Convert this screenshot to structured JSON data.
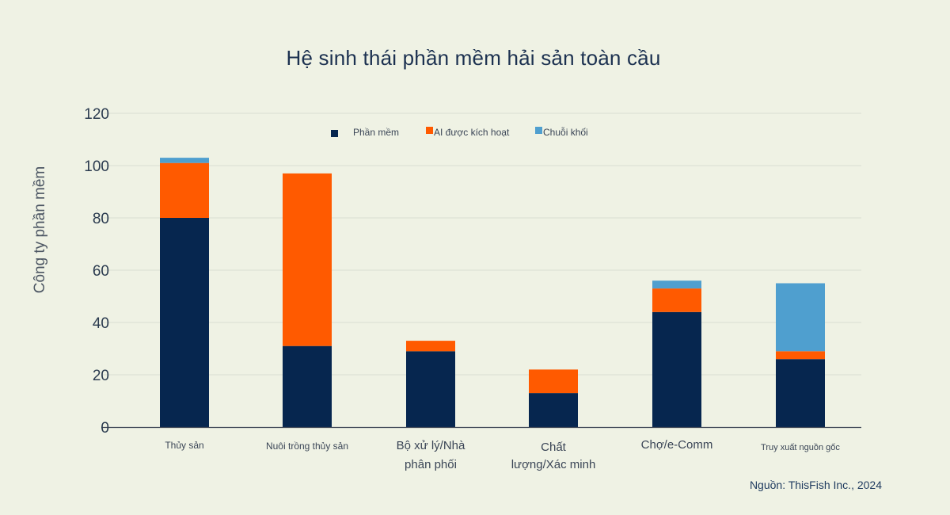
{
  "chart_data": {
    "type": "bar",
    "stacked": true,
    "title": "Hệ sinh thái phần mềm hải sản toàn cầu",
    "ylabel": "Công ty phần mềm",
    "xlabel": "",
    "ylim": [
      0,
      120
    ],
    "yticks": [
      0,
      20,
      40,
      60,
      80,
      100,
      120
    ],
    "grid": true,
    "legend_position": "top",
    "categories": [
      "Thủy sản",
      "Nuôi trồng thủy sản",
      "Bộ xử lý/Nhà phân phối",
      "Chất lượng/Xác minh",
      "Chợ/e-Comm",
      "Truy xuất nguồn gốc"
    ],
    "category_lines": [
      [
        "Thủy sản"
      ],
      [
        "Nuôi trồng thủy sản"
      ],
      [
        "Bộ xử lý/Nhà",
        "phân phối"
      ],
      [
        "Chất",
        "lượng/Xác minh"
      ],
      [
        "Chợ/e-Comm"
      ],
      [
        "Truy xuất nguồn gốc"
      ]
    ],
    "series": [
      {
        "name": "Phần mềm",
        "color": "#06264f",
        "values": [
          80,
          31,
          29,
          13,
          44,
          26
        ]
      },
      {
        "name": "AI được kích hoạt",
        "color": "#ff5a00",
        "values": [
          21,
          66,
          4,
          9,
          9,
          3
        ]
      },
      {
        "name": "Chuỗi khối",
        "color": "#4f9fcf",
        "values": [
          2,
          0,
          0,
          0,
          3,
          26
        ]
      }
    ],
    "source": "Nguồn: ThisFish Inc., 2024"
  }
}
